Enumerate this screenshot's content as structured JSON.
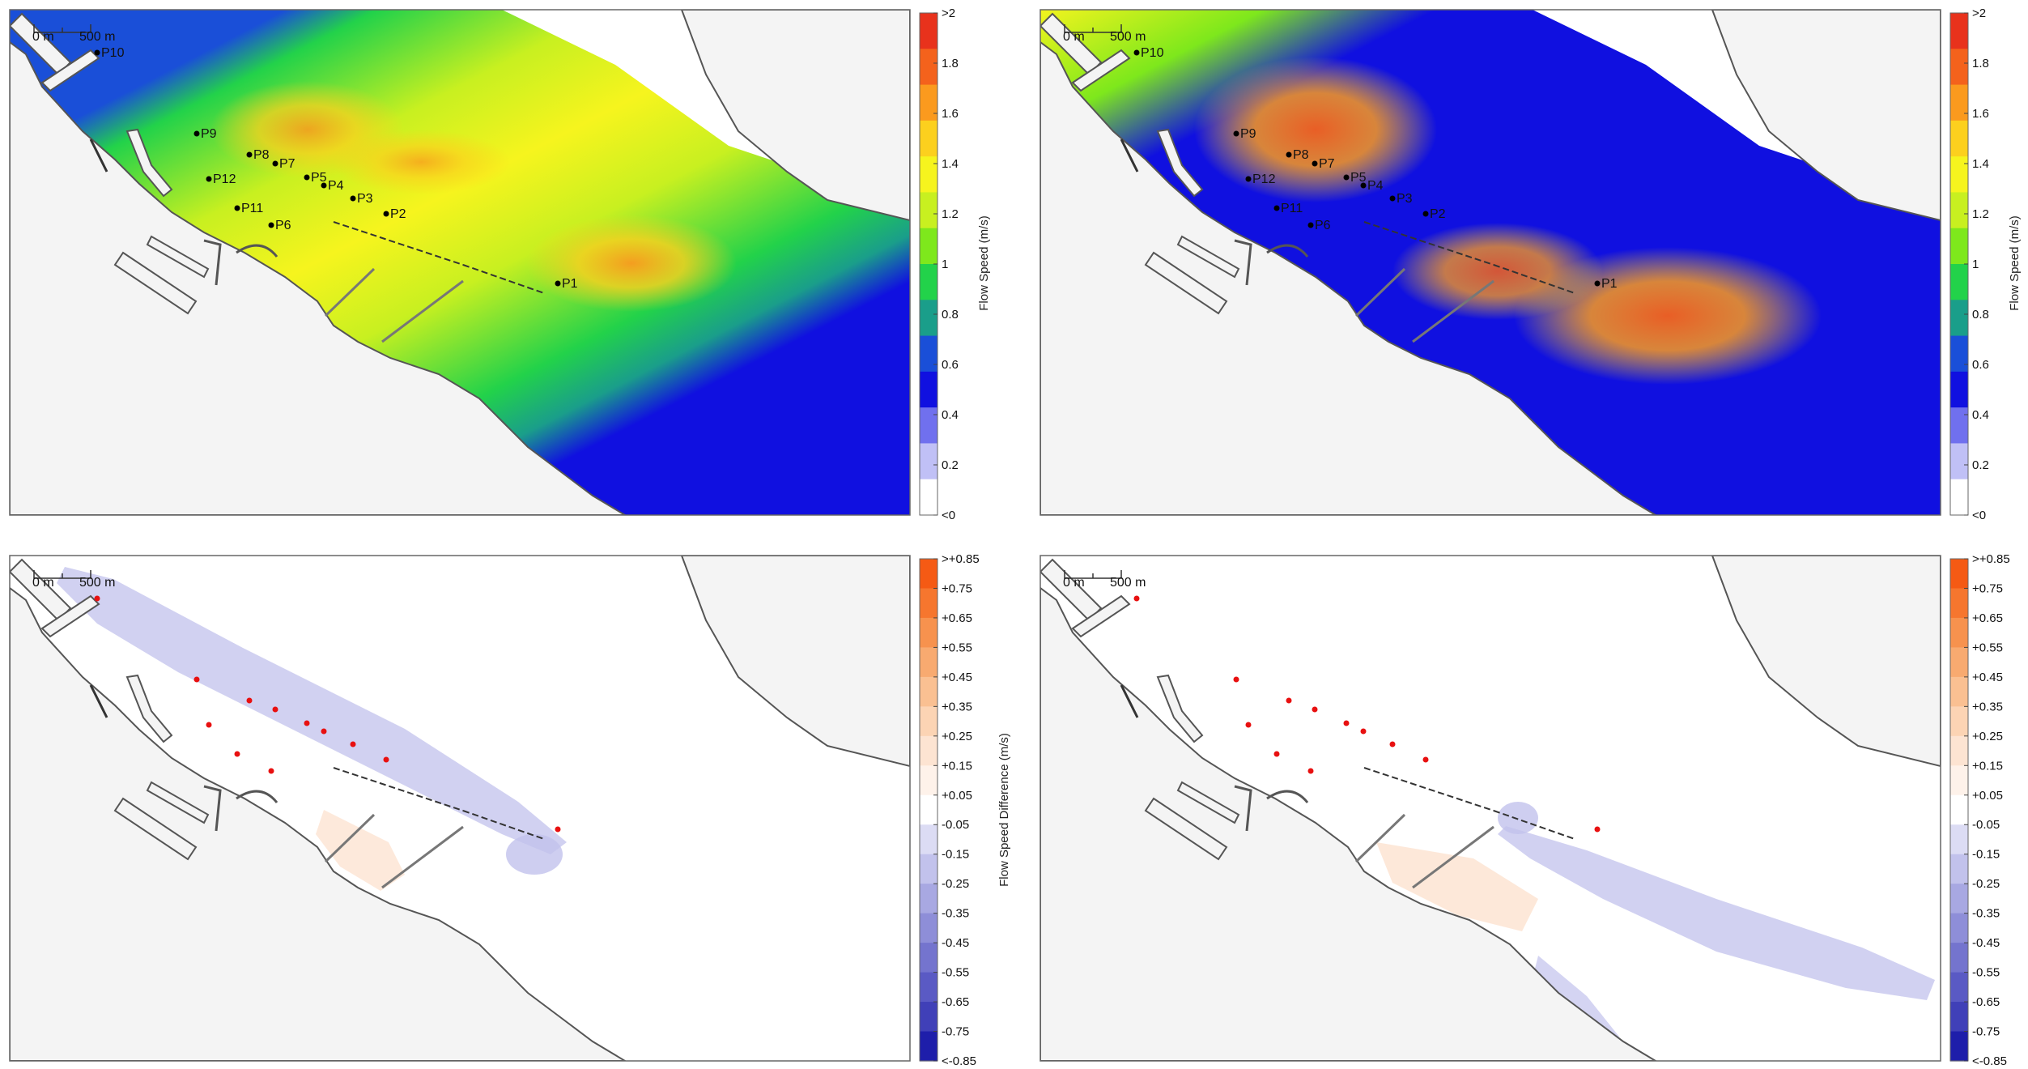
{
  "scale_bar": {
    "start": "0 m",
    "end": "500 m"
  },
  "colorbars": {
    "speed": {
      "title": "Flow Speed (m/s)",
      "ticks": [
        ">2",
        "1.8",
        "1.6",
        "1.4",
        "1.2",
        "1",
        "0.8",
        "0.6",
        "0.4",
        "0.2",
        "<0"
      ],
      "colors": [
        "#e8321c",
        "#f4621c",
        "#fb9a1e",
        "#fcd01e",
        "#f6f41e",
        "#c8f020",
        "#7ee81c",
        "#22d24a",
        "#1a9e8a",
        "#1a4fd8",
        "#1010e0",
        "#7070ee",
        "#c0c0f6",
        "#ffffff"
      ]
    },
    "diff": {
      "title": "Flow Speed Difference (m/s)",
      "ticks": [
        ">+0.85",
        "+0.75",
        "+0.65",
        "+0.55",
        "+0.45",
        "+0.35",
        "+0.25",
        "+0.15",
        "+0.05",
        "-0.05",
        "-0.15",
        "-0.25",
        "-0.35",
        "-0.45",
        "-0.55",
        "-0.65",
        "-0.75",
        "<-0.85"
      ],
      "colors": [
        "#f55a14",
        "#f6762e",
        "#f7924e",
        "#f8aa70",
        "#fac092",
        "#fcd4b4",
        "#fde4d2",
        "#fef2ea",
        "#ffffff",
        "#dcdcf4",
        "#c2c2ec",
        "#a8a8e2",
        "#8e8ed8",
        "#7474ce",
        "#5a5ac4",
        "#4040b8",
        "#1e1eaa"
      ]
    }
  },
  "points": {
    "panel_a": [
      {
        "label": "P10"
      },
      {
        "label": "P9"
      },
      {
        "label": "P8"
      },
      {
        "label": "P7"
      },
      {
        "label": "P5"
      },
      {
        "label": "P4"
      },
      {
        "label": "P3"
      },
      {
        "label": "P2"
      },
      {
        "label": "P12"
      },
      {
        "label": "P11"
      },
      {
        "label": "P6"
      },
      {
        "label": "P1"
      }
    ],
    "panel_b": [
      {
        "label": "P10"
      },
      {
        "label": "P9"
      },
      {
        "label": "P8"
      },
      {
        "label": "P7"
      },
      {
        "label": "P5"
      },
      {
        "label": "P4"
      },
      {
        "label": "P3"
      },
      {
        "label": "P2"
      },
      {
        "label": "P12"
      },
      {
        "label": "P11"
      },
      {
        "label": "P6"
      },
      {
        "label": "P1"
      }
    ]
  },
  "colors": {
    "land": "#f4f4f4",
    "coast": "#555555",
    "point": "#000000",
    "diff_point": "#e81010"
  }
}
